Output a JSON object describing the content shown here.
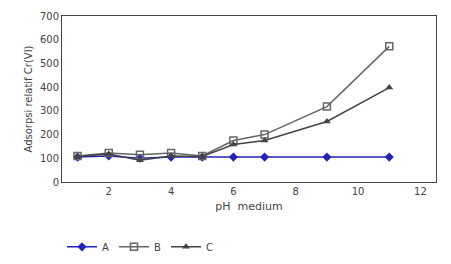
{
  "chart_data": {
    "type": "line",
    "title": "",
    "xlabel": "pH  medium",
    "ylabel": "Adsorpsi relatif Cr(VI)",
    "x": [
      1,
      2,
      3,
      4,
      5,
      6,
      7,
      9,
      11
    ],
    "series": [
      {
        "name": "A",
        "color": "#2222bb",
        "marker": "diamond",
        "values": [
          105,
          110,
          100,
          105,
          105,
          105,
          105,
          105,
          105
        ]
      },
      {
        "name": "B",
        "color": "#666666",
        "marker": "square-open",
        "values": [
          110,
          122,
          115,
          122,
          110,
          175,
          200,
          318,
          572
        ]
      },
      {
        "name": "C",
        "color": "#444444",
        "marker": "triangle-up",
        "values": [
          108,
          118,
          92,
          110,
          108,
          158,
          175,
          255,
          398
        ]
      }
    ],
    "xlim": [
      0.5,
      12.5
    ],
    "xticks": [
      2,
      4,
      6,
      8,
      10,
      12
    ],
    "ylim": [
      0,
      700
    ],
    "yticks": [
      0,
      100,
      200,
      300,
      400,
      500,
      600,
      700
    ],
    "grid": false,
    "legend": "lower left"
  }
}
